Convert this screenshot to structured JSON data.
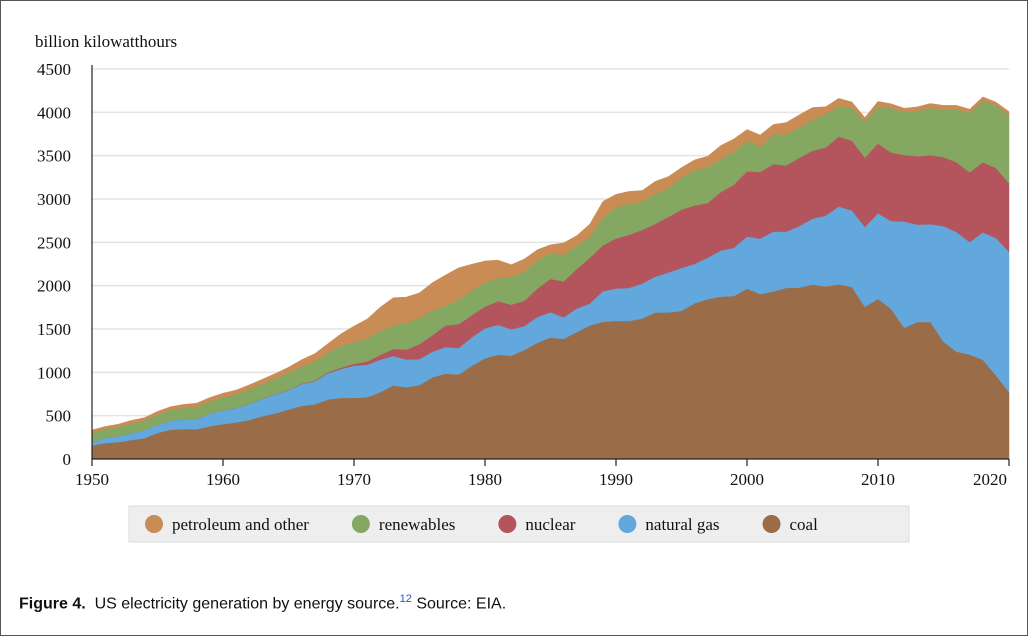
{
  "chart_data": {
    "type": "stacked_area",
    "y_label": "billion kilowatthours",
    "x": [
      1950,
      1951,
      1952,
      1953,
      1954,
      1955,
      1956,
      1957,
      1958,
      1959,
      1960,
      1961,
      1962,
      1963,
      1964,
      1965,
      1966,
      1967,
      1968,
      1969,
      1970,
      1971,
      1972,
      1973,
      1974,
      1975,
      1976,
      1977,
      1978,
      1979,
      1980,
      1981,
      1982,
      1983,
      1984,
      1985,
      1986,
      1987,
      1988,
      1989,
      1990,
      1991,
      1992,
      1993,
      1994,
      1995,
      1996,
      1997,
      1998,
      1999,
      2000,
      2001,
      2002,
      2003,
      2004,
      2005,
      2006,
      2007,
      2008,
      2009,
      2010,
      2011,
      2012,
      2013,
      2014,
      2015,
      2016,
      2017,
      2018,
      2019,
      2020
    ],
    "xlim": [
      1950,
      2020
    ],
    "xticks": [
      1950,
      1960,
      1970,
      1980,
      1990,
      2000,
      2010,
      2020
    ],
    "ylim": [
      0,
      4500
    ],
    "yticks": [
      0,
      500,
      1000,
      1500,
      2000,
      2500,
      3000,
      3500,
      4000,
      4500
    ],
    "grid": true,
    "series": [
      {
        "name": "petroleum and other",
        "color": "#c98c55",
        "values": [
          34,
          29,
          30,
          37,
          32,
          37,
          38,
          40,
          40,
          47,
          48,
          49,
          48,
          52,
          57,
          65,
          79,
          89,
          104,
          138,
          184,
          220,
          274,
          314,
          301,
          289,
          320,
          358,
          365,
          303,
          246,
          206,
          147,
          144,
          120,
          100,
          137,
          118,
          149,
          190,
          152,
          146,
          128,
          138,
          136,
          116,
          118,
          128,
          157,
          153,
          125,
          138,
          111,
          140,
          143,
          142,
          85,
          90,
          65,
          47,
          57,
          49,
          43,
          48,
          52,
          51,
          44,
          41,
          44,
          38,
          36
        ]
      },
      {
        "name": "renewables",
        "color": "#84a862",
        "values": [
          101,
          104,
          109,
          109,
          112,
          116,
          123,
          130,
          141,
          138,
          149,
          153,
          171,
          169,
          180,
          196,
          197,
          223,
          224,
          253,
          251,
          269,
          277,
          275,
          305,
          303,
          287,
          224,
          284,
          285,
          280,
          267,
          315,
          337,
          328,
          294,
          307,
          267,
          240,
          316,
          357,
          355,
          326,
          350,
          331,
          368,
          407,
          412,
          380,
          375,
          356,
          288,
          343,
          355,
          351,
          358,
          385,
          352,
          380,
          417,
          427,
          513,
          495,
          521,
          544,
          545,
          612,
          687,
          712,
          720,
          791
        ]
      },
      {
        "name": "nuclear",
        "color": "#b4545c",
        "values": [
          0,
          0,
          0,
          0,
          0,
          0,
          0,
          0,
          0,
          0,
          1,
          2,
          2,
          3,
          3,
          4,
          6,
          8,
          13,
          14,
          22,
          38,
          54,
          83,
          114,
          173,
          191,
          251,
          276,
          255,
          251,
          273,
          283,
          294,
          328,
          384,
          414,
          455,
          527,
          529,
          577,
          613,
          619,
          610,
          640,
          673,
          675,
          629,
          674,
          728,
          754,
          769,
          780,
          764,
          789,
          782,
          787,
          806,
          806,
          799,
          807,
          790,
          769,
          789,
          797,
          797,
          806,
          805,
          807,
          809,
          790
        ]
      },
      {
        "name": "natural gas",
        "color": "#62a8dc",
        "values": [
          45,
          57,
          68,
          80,
          94,
          95,
          104,
          114,
          120,
          147,
          158,
          169,
          184,
          202,
          220,
          222,
          251,
          265,
          304,
          333,
          373,
          374,
          376,
          341,
          320,
          300,
          295,
          306,
          305,
          330,
          346,
          346,
          305,
          274,
          297,
          292,
          249,
          273,
          253,
          353,
          373,
          382,
          404,
          415,
          461,
          496,
          455,
          479,
          532,
          556,
          601,
          639,
          691,
          650,
          710,
          761,
          816,
          897,
          883,
          921,
          988,
          1014,
          1226,
          1124,
          1127,
          1335,
          1379,
          1297,
          1469,
          1586,
          1617
        ]
      },
      {
        "name": "coal",
        "color": "#9a6d48",
        "values": [
          155,
          185,
          195,
          219,
          239,
          301,
          338,
          346,
          344,
          378,
          403,
          422,
          450,
          494,
          526,
          571,
          613,
          630,
          685,
          706,
          704,
          713,
          771,
          848,
          828,
          853,
          944,
          985,
          976,
          1075,
          1162,
          1203,
          1192,
          1259,
          1342,
          1402,
          1386,
          1464,
          1541,
          1584,
          1594,
          1592,
          1621,
          1690,
          1691,
          1709,
          1796,
          1845,
          1874,
          1881,
          1966,
          1904,
          1933,
          1974,
          1978,
          2013,
          1991,
          2016,
          1986,
          1756,
          1847,
          1733,
          1514,
          1581,
          1582,
          1352,
          1239,
          1206,
          1146,
          965,
          774
        ]
      }
    ]
  },
  "caption": {
    "label": "Figure 4.",
    "text": "US electricity generation by energy source.",
    "ref": "12",
    "source": "Source: EIA."
  }
}
